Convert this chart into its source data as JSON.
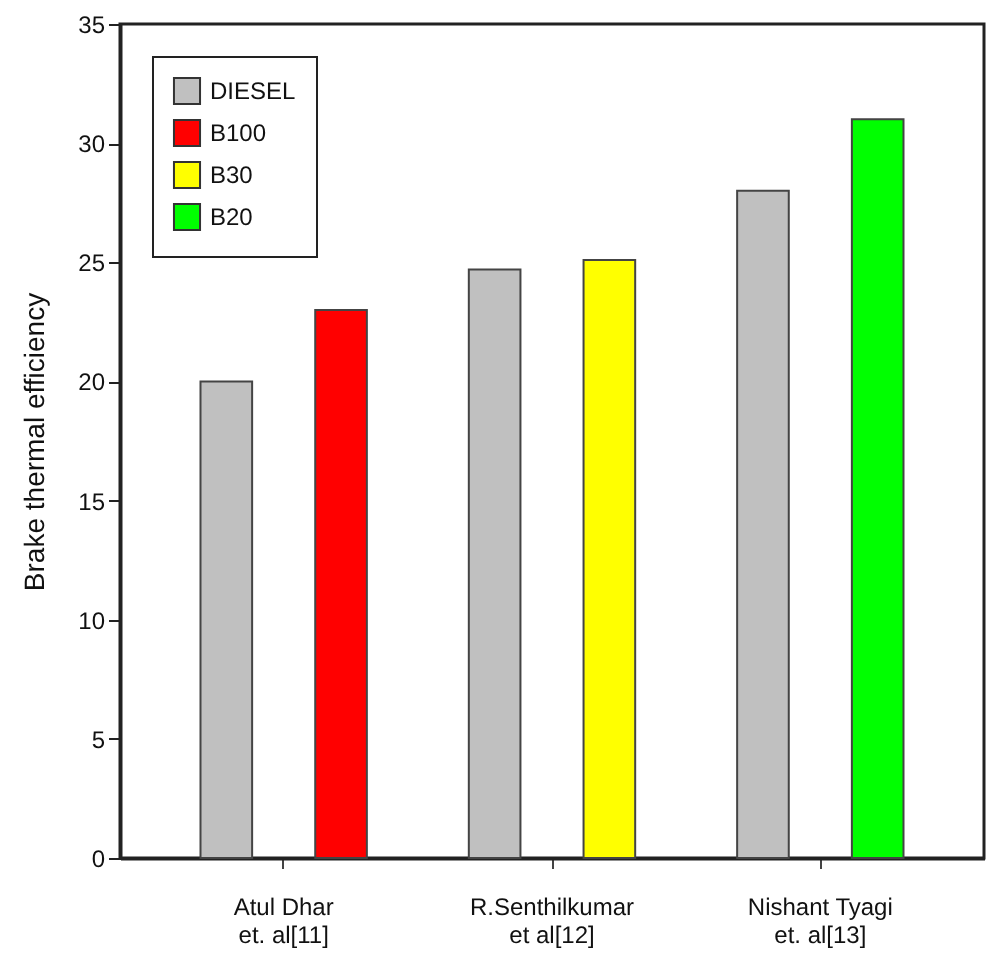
{
  "chart_data": {
    "type": "bar",
    "ylabel": "Brake thermal efficiency",
    "categories": [
      "Atul Dhar\net. al[11]",
      "R.Senthilkumar\net al[12]",
      "Nishant Tyagi\net. al[13]"
    ],
    "series": [
      {
        "name": "DIESEL",
        "color": "#c0c0c0",
        "values": [
          20,
          24.7,
          28
        ]
      },
      {
        "name": "B100",
        "color": "#ff0000",
        "values": [
          23,
          null,
          null
        ]
      },
      {
        "name": "B30",
        "color": "#ffff00",
        "values": [
          null,
          25.1,
          null
        ]
      },
      {
        "name": "B20",
        "color": "#00ff00",
        "values": [
          null,
          null,
          31
        ]
      }
    ],
    "ylim": [
      0,
      35
    ],
    "yticks": [
      0,
      5,
      10,
      15,
      20,
      25,
      30,
      35
    ],
    "grid": false,
    "legend": "top left"
  }
}
